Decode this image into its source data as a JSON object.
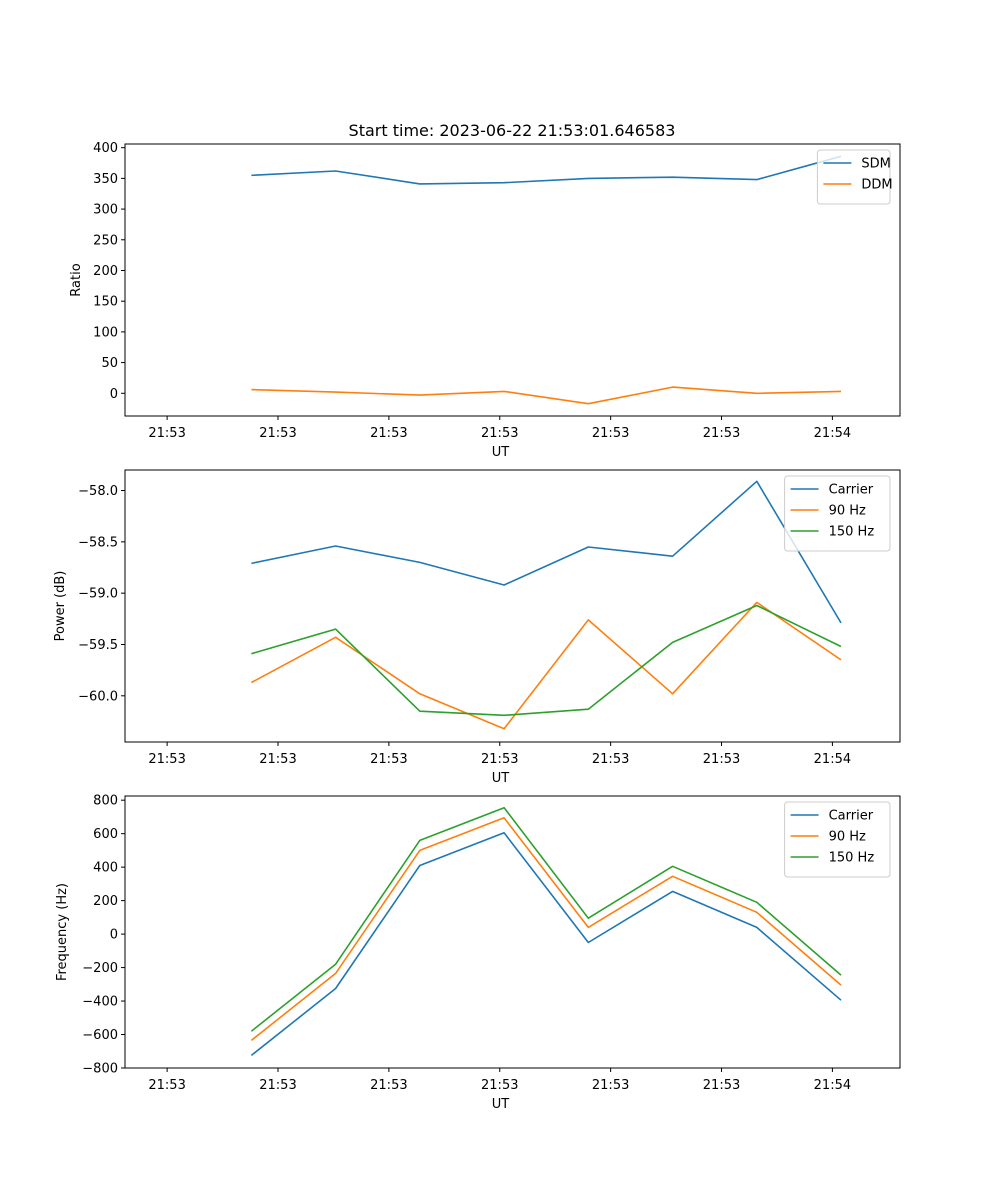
{
  "figure_title": "Start time: 2023-06-22 21:53:01.646583",
  "chart_data": [
    {
      "type": "line",
      "title": "",
      "xlabel": "UT",
      "ylabel": "Ratio",
      "x_tick_labels": [
        "21:53",
        "21:53",
        "21:53",
        "21:53",
        "21:53",
        "21:53",
        "21:54"
      ],
      "xlim": [
        -0.5,
        8.7
      ],
      "ylim": [
        -37,
        406
      ],
      "yticks": [
        0,
        50,
        100,
        150,
        200,
        250,
        300,
        350,
        400
      ],
      "ytick_labels": [
        "0",
        "50",
        "100",
        "150",
        "200",
        "250",
        "300",
        "350",
        "400"
      ],
      "legend_position": "top-right",
      "grid": false,
      "x": [
        1,
        2,
        3,
        4,
        5,
        6,
        7,
        8
      ],
      "series": [
        {
          "name": "SDM",
          "color": "#1f77b4",
          "values": [
            355,
            362,
            341,
            343,
            350,
            352,
            348,
            386
          ]
        },
        {
          "name": "DDM",
          "color": "#ff7f0e",
          "values": [
            6,
            2,
            -3,
            3,
            -17,
            10,
            0,
            3
          ]
        }
      ]
    },
    {
      "type": "line",
      "title": "",
      "xlabel": "UT",
      "ylabel": "Power (dB)",
      "x_tick_labels": [
        "21:53",
        "21:53",
        "21:53",
        "21:53",
        "21:53",
        "21:53",
        "21:54"
      ],
      "xlim": [
        -0.5,
        8.7
      ],
      "ylim": [
        -60.45,
        -57.8
      ],
      "yticks": [
        -60.0,
        -59.5,
        -59.0,
        -58.5,
        -58.0
      ],
      "ytick_labels": [
        "−60.0",
        "−59.5",
        "−59.0",
        "−58.5",
        "−58.0"
      ],
      "legend_position": "top-right",
      "grid": false,
      "x": [
        1,
        2,
        3,
        4,
        5,
        6,
        7,
        8
      ],
      "series": [
        {
          "name": "Carrier",
          "color": "#1f77b4",
          "values": [
            -58.71,
            -58.54,
            -58.7,
            -58.92,
            -58.55,
            -58.64,
            -57.91,
            -59.29
          ]
        },
        {
          "name": "90 Hz",
          "color": "#ff7f0e",
          "values": [
            -59.87,
            -59.43,
            -59.98,
            -60.32,
            -59.26,
            -59.98,
            -59.09,
            -59.65
          ]
        },
        {
          "name": "150 Hz",
          "color": "#2ca02c",
          "values": [
            -59.59,
            -59.35,
            -60.15,
            -60.19,
            -60.13,
            -59.48,
            -59.12,
            -59.52
          ]
        }
      ]
    },
    {
      "type": "line",
      "title": "",
      "xlabel": "UT",
      "ylabel": "Frequency (Hz)",
      "x_tick_labels": [
        "21:53",
        "21:53",
        "21:53",
        "21:53",
        "21:53",
        "21:53",
        "21:54"
      ],
      "xlim": [
        -0.5,
        8.7
      ],
      "ylim": [
        -800,
        825
      ],
      "yticks": [
        -800,
        -600,
        -400,
        -200,
        0,
        200,
        400,
        600,
        800
      ],
      "ytick_labels": [
        "−800",
        "−600",
        "−400",
        "−200",
        "0",
        "200",
        "400",
        "600",
        "800"
      ],
      "legend_position": "top-right",
      "grid": false,
      "x": [
        1,
        2,
        3,
        4,
        5,
        6,
        7,
        8
      ],
      "series": [
        {
          "name": "Carrier",
          "color": "#1f77b4",
          "values": [
            -725,
            -325,
            410,
            605,
            -50,
            255,
            40,
            -395
          ]
        },
        {
          "name": "90 Hz",
          "color": "#ff7f0e",
          "values": [
            -635,
            -235,
            500,
            695,
            40,
            345,
            130,
            -305
          ]
        },
        {
          "name": "150 Hz",
          "color": "#2ca02c",
          "values": [
            -580,
            -180,
            560,
            755,
            95,
            405,
            190,
            -245
          ]
        }
      ]
    }
  ]
}
